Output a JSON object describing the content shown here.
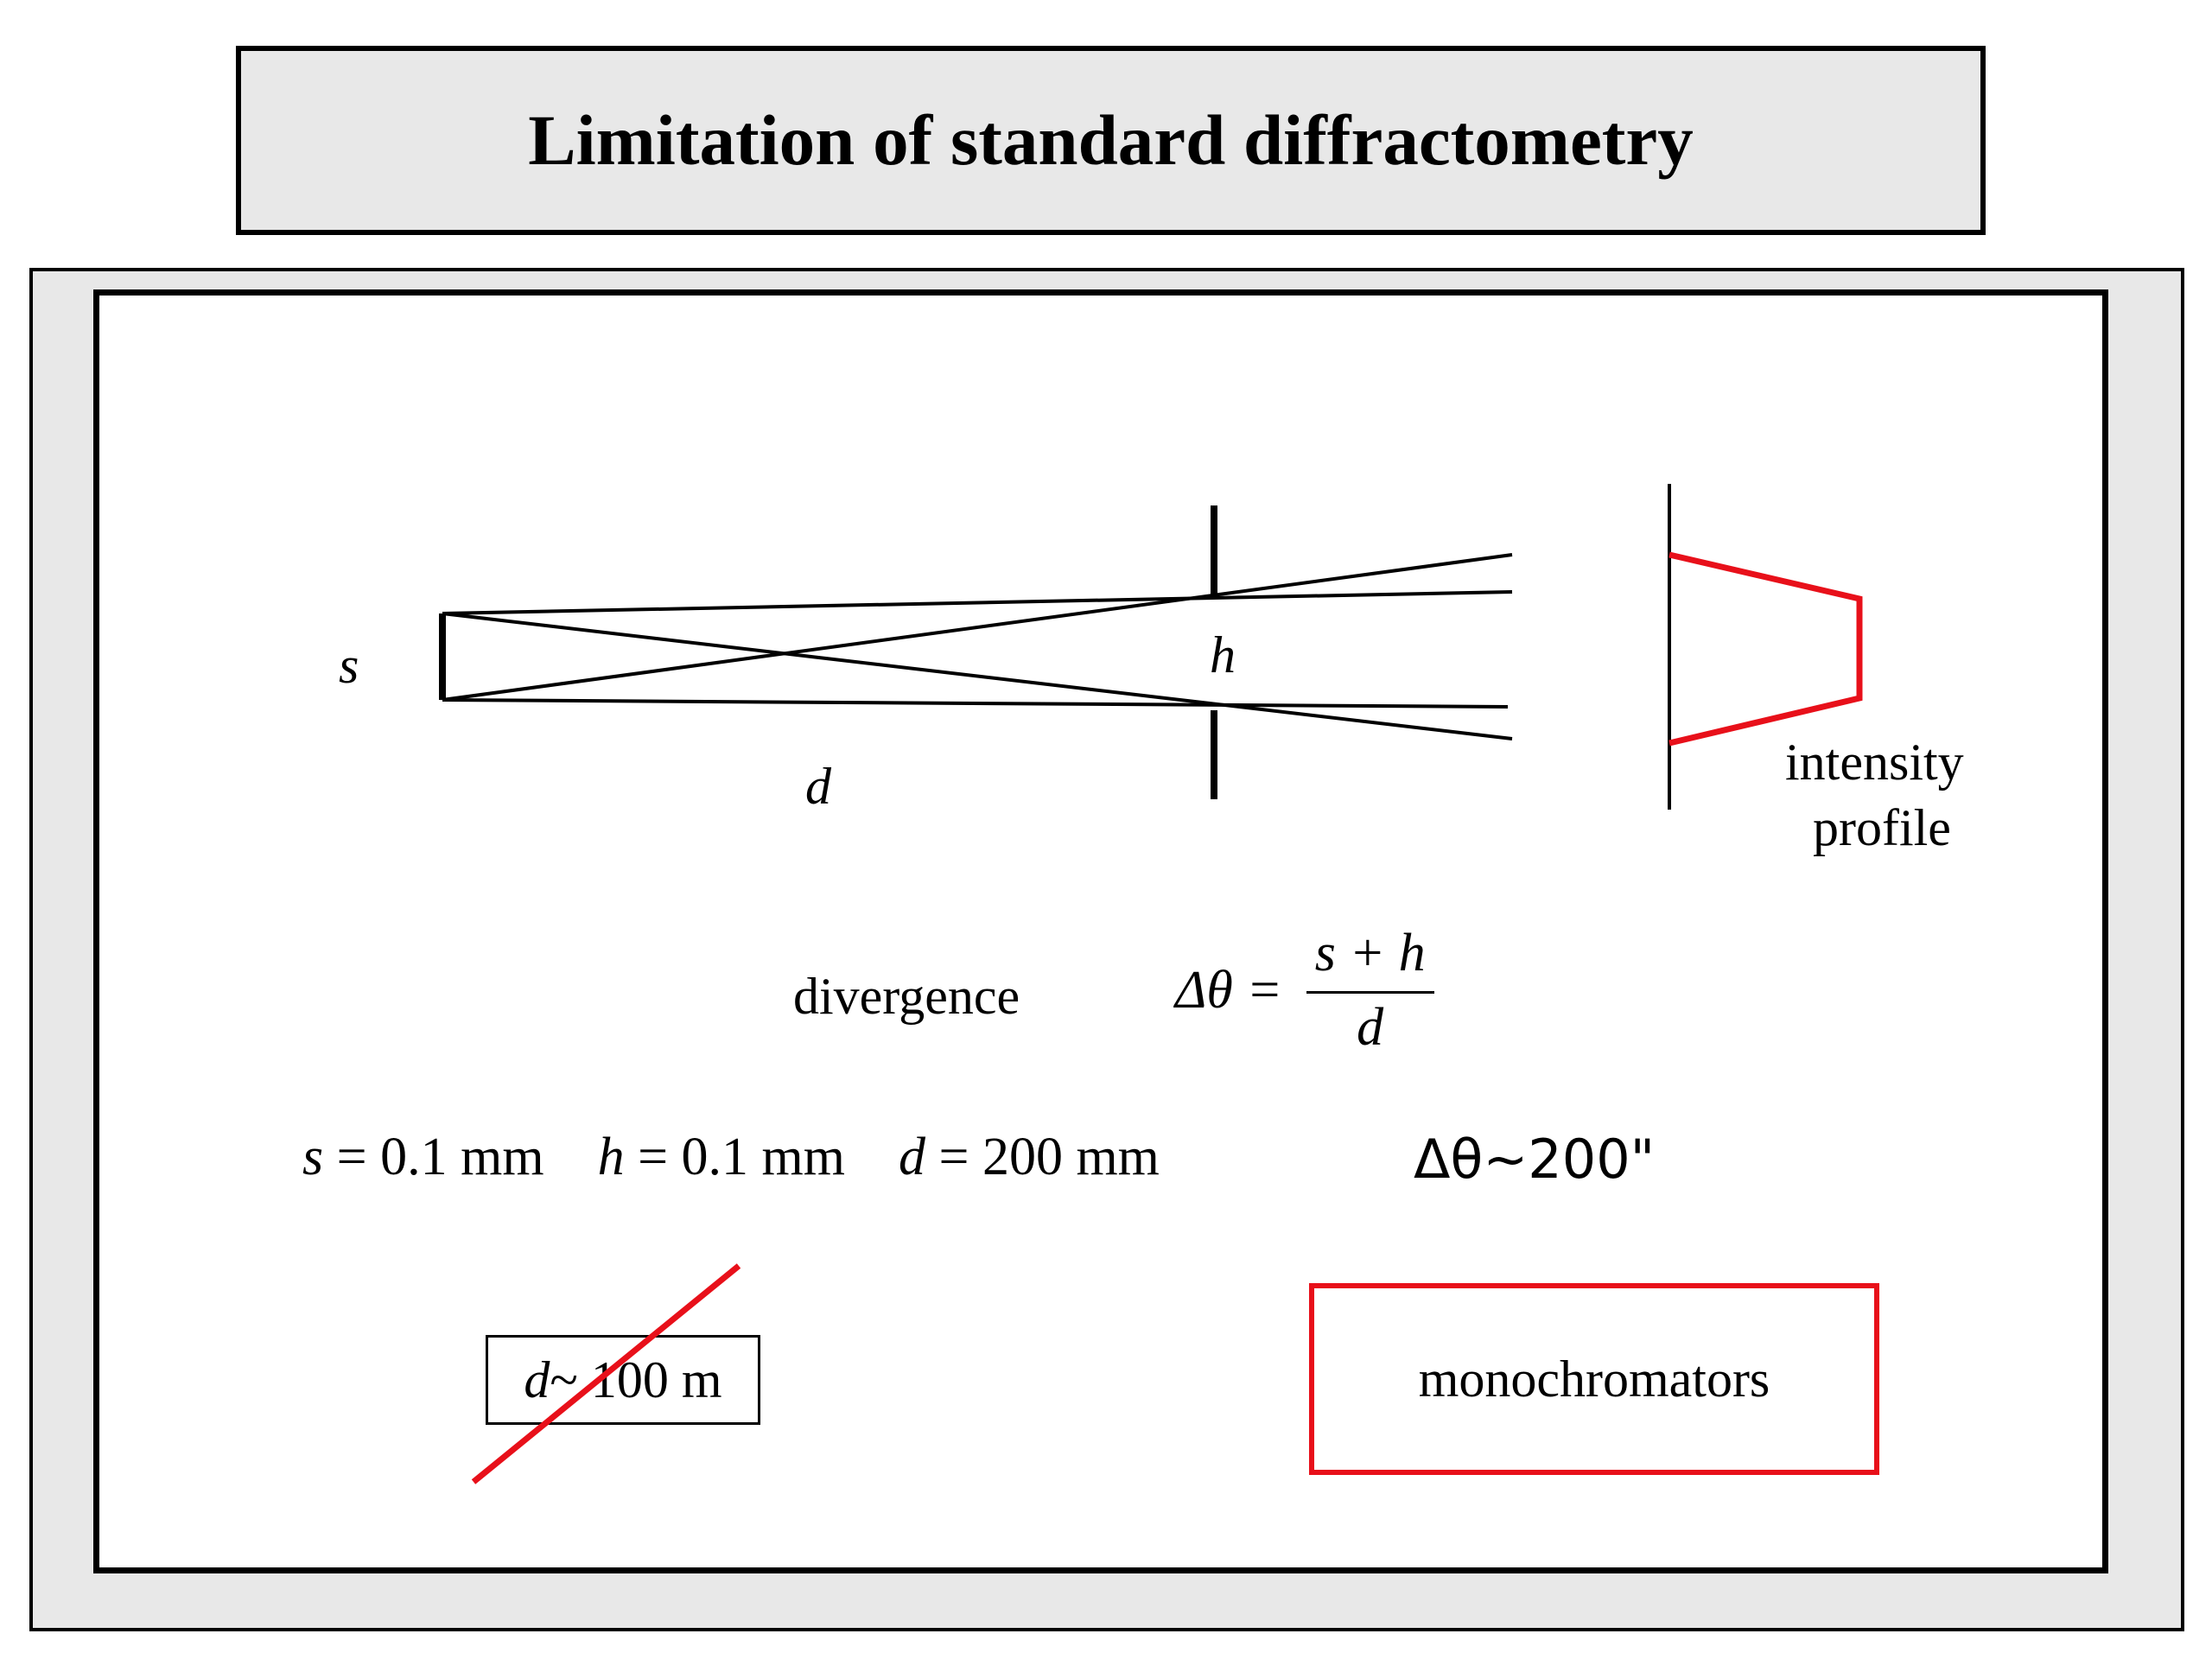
{
  "title": "Limitation of standard diffractometry",
  "diagram": {
    "label_s": "s",
    "label_h": "h",
    "label_d": "d",
    "intensity_label_line1": "intensity",
    "intensity_label_line2": "profile",
    "accent_color": "#e8101a"
  },
  "divergence": {
    "label": "divergence",
    "lhs": "Δθ =",
    "numerator": "s + h",
    "denominator": "d"
  },
  "parameters": {
    "s_var": "s",
    "s_value": " = 0.1 mm",
    "h_var": "h",
    "h_value": " = 0.1 mm",
    "d_var": "d",
    "d_value": " = 200 mm",
    "result": "Δθ~200\""
  },
  "struck_option": {
    "var": "d",
    "value": " ~ 100 m"
  },
  "solution": {
    "label": "monochromators"
  }
}
